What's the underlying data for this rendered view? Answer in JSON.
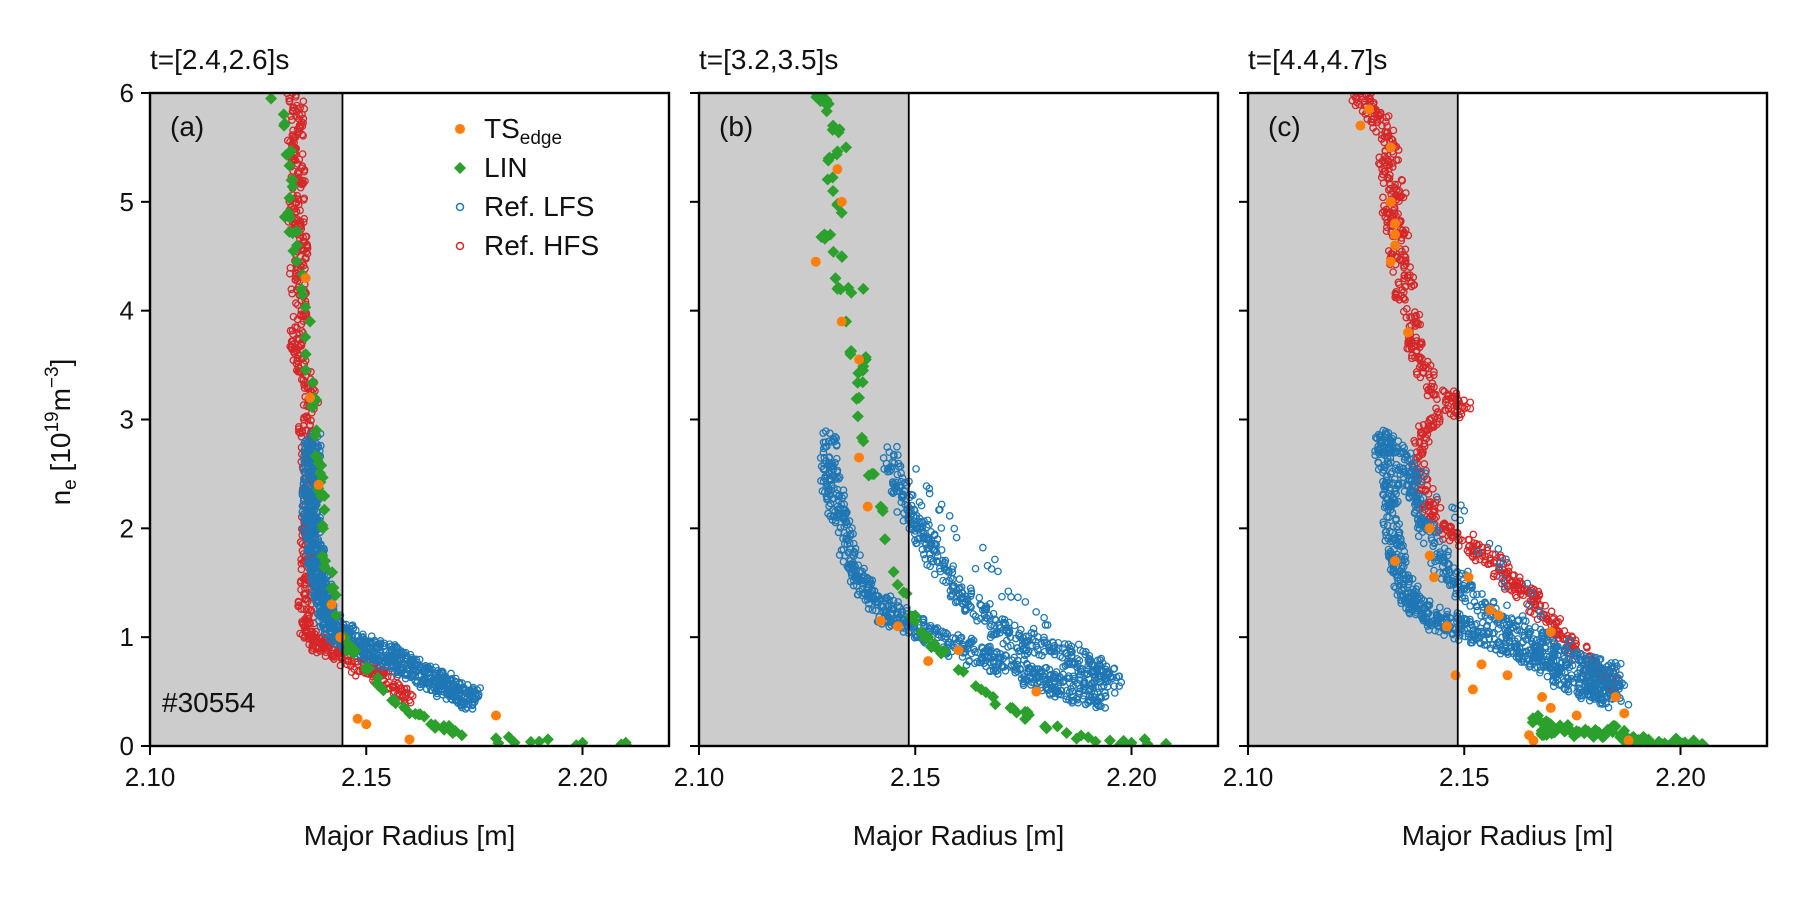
{
  "chart_data": {
    "type": "scatter",
    "ylabel_main": "n",
    "ylabel_sub": "e",
    "ylabel_rest": " [10",
    "ylabel_exp": "19",
    "ylabel_unit": "m",
    "ylabel_unit_exp": "−3",
    "ylabel_close": "]",
    "xlabel": "Major Radius [m]",
    "xlim": [
      2.1,
      2.22
    ],
    "ylim": [
      0,
      6
    ],
    "xticks": [
      "2.10",
      "2.15",
      "2.20"
    ],
    "yticks": [
      "0",
      "1",
      "2",
      "3",
      "4",
      "5",
      "6"
    ],
    "shot_label": "#30554",
    "colors": {
      "ts_edge": "#ff7f0e",
      "lin": "#2ca02c",
      "ref_lfs": "#1f77b4",
      "ref_hfs": "#d62728",
      "shade": "#cccccc"
    },
    "legend": {
      "placement": "top-center of panel (a)",
      "entries": [
        {
          "key": "ts",
          "label": "TS",
          "sub": "edge"
        },
        {
          "key": "lin",
          "label": "LIN",
          "sub": ""
        },
        {
          "key": "lfs",
          "label": "Ref. LFS",
          "sub": ""
        },
        {
          "key": "hfs",
          "label": "Ref. HFS",
          "sub": ""
        }
      ]
    },
    "panels": [
      {
        "title": "t=[2.4,2.6]s",
        "label": "(a)",
        "separatrix_R": 2.1445,
        "hfs": [
          [
            2.133,
            6.0
          ],
          [
            2.1345,
            5.8
          ],
          [
            2.1335,
            5.5
          ],
          [
            2.1345,
            5.2
          ],
          [
            2.1335,
            4.9
          ],
          [
            2.135,
            4.6
          ],
          [
            2.134,
            4.3
          ],
          [
            2.135,
            4.0
          ],
          [
            2.1335,
            3.7
          ],
          [
            2.136,
            3.4
          ],
          [
            2.1375,
            3.2
          ],
          [
            2.136,
            2.9
          ],
          [
            2.1365,
            2.6
          ],
          [
            2.137,
            2.3
          ],
          [
            2.1365,
            2.0
          ],
          [
            2.1365,
            1.7
          ],
          [
            2.136,
            1.4
          ],
          [
            2.136,
            1.15
          ],
          [
            2.137,
            1.0
          ],
          [
            2.14,
            0.9
          ],
          [
            2.144,
            0.85
          ],
          [
            2.148,
            0.75
          ],
          [
            2.152,
            0.65
          ],
          [
            2.156,
            0.55
          ],
          [
            2.16,
            0.42
          ]
        ],
        "lfs": [
          [
            2.1375,
            2.8
          ],
          [
            2.1375,
            2.55
          ],
          [
            2.137,
            2.3
          ],
          [
            2.1375,
            2.0
          ],
          [
            2.138,
            1.8
          ],
          [
            2.139,
            1.6
          ],
          [
            2.14,
            1.4
          ],
          [
            2.141,
            1.2
          ],
          [
            2.143,
            1.05
          ],
          [
            2.146,
            0.98
          ],
          [
            2.15,
            0.9
          ],
          [
            2.155,
            0.82
          ],
          [
            2.16,
            0.72
          ],
          [
            2.165,
            0.62
          ],
          [
            2.17,
            0.52
          ],
          [
            2.175,
            0.43
          ]
        ],
        "lin": [
          [
            2.128,
            5.95
          ],
          [
            2.131,
            5.7
          ],
          [
            2.133,
            5.2
          ],
          [
            2.132,
            4.9
          ],
          [
            2.134,
            4.6
          ],
          [
            2.135,
            4.2
          ],
          [
            2.137,
            3.9
          ],
          [
            2.136,
            3.6
          ],
          [
            2.138,
            3.2
          ],
          [
            2.1385,
            2.9
          ],
          [
            2.139,
            2.6
          ],
          [
            2.1395,
            2.3
          ],
          [
            2.14,
            2.0
          ],
          [
            2.1405,
            1.7
          ],
          [
            2.142,
            1.45
          ],
          [
            2.143,
            1.2
          ],
          [
            2.145,
            1.0
          ],
          [
            2.147,
            0.85
          ],
          [
            2.15,
            0.7
          ],
          [
            2.153,
            0.55
          ],
          [
            2.156,
            0.42
          ],
          [
            2.16,
            0.3
          ],
          [
            2.165,
            0.2
          ],
          [
            2.17,
            0.12
          ],
          [
            2.18,
            0.07
          ],
          [
            2.19,
            0.04
          ],
          [
            2.2,
            0.03
          ],
          [
            2.21,
            0.03
          ]
        ],
        "ts": [
          [
            2.136,
            4.3
          ],
          [
            2.137,
            3.2
          ],
          [
            2.139,
            2.4
          ],
          [
            2.142,
            1.3
          ],
          [
            2.144,
            1.0
          ],
          [
            2.148,
            0.25
          ],
          [
            2.15,
            0.2
          ],
          [
            2.16,
            0.06
          ],
          [
            2.18,
            0.28
          ]
        ]
      },
      {
        "title": "t=[3.2,3.5]s",
        "label": "(b)",
        "separatrix_R": 2.1485,
        "hfs": [],
        "lfs": [
          [
            2.13,
            2.8
          ],
          [
            2.13,
            2.5
          ],
          [
            2.132,
            2.2
          ],
          [
            2.134,
            1.9
          ],
          [
            2.136,
            1.6
          ],
          [
            2.139,
            1.4
          ],
          [
            2.143,
            1.25
          ],
          [
            2.148,
            1.15
          ],
          [
            2.153,
            1.05
          ],
          [
            2.158,
            0.95
          ],
          [
            2.163,
            0.85
          ],
          [
            2.168,
            0.78
          ],
          [
            2.173,
            0.7
          ],
          [
            2.178,
            0.62
          ],
          [
            2.183,
            0.55
          ],
          [
            2.188,
            0.5
          ],
          [
            2.193,
            0.44
          ],
          [
            2.144,
            2.7
          ],
          [
            2.147,
            2.3
          ],
          [
            2.151,
            2.0
          ],
          [
            2.155,
            1.7
          ],
          [
            2.16,
            1.4
          ],
          [
            2.166,
            1.2
          ],
          [
            2.172,
            1.0
          ],
          [
            2.178,
            0.92
          ],
          [
            2.185,
            0.85
          ],
          [
            2.192,
            0.72
          ],
          [
            2.196,
            0.55
          ]
        ],
        "lin": [
          [
            2.127,
            6.0
          ],
          [
            2.13,
            5.9
          ],
          [
            2.131,
            5.7
          ],
          [
            2.134,
            5.5
          ],
          [
            2.13,
            5.4
          ],
          [
            2.131,
            5.1
          ],
          [
            2.133,
            4.9
          ],
          [
            2.129,
            4.7
          ],
          [
            2.133,
            4.5
          ],
          [
            2.132,
            4.2
          ],
          [
            2.138,
            4.2
          ],
          [
            2.134,
            3.9
          ],
          [
            2.135,
            3.6
          ],
          [
            2.138,
            3.55
          ],
          [
            2.137,
            3.2
          ],
          [
            2.138,
            2.8
          ],
          [
            2.14,
            2.5
          ],
          [
            2.142,
            2.2
          ],
          [
            2.143,
            1.9
          ],
          [
            2.145,
            1.6
          ],
          [
            2.148,
            1.4
          ],
          [
            2.15,
            1.2
          ],
          [
            2.153,
            1.0
          ],
          [
            2.156,
            0.85
          ],
          [
            2.16,
            0.7
          ],
          [
            2.164,
            0.55
          ],
          [
            2.168,
            0.45
          ],
          [
            2.172,
            0.35
          ],
          [
            2.176,
            0.28
          ],
          [
            2.18,
            0.18
          ],
          [
            2.185,
            0.12
          ],
          [
            2.19,
            0.08
          ],
          [
            2.195,
            0.05
          ],
          [
            2.2,
            0.03
          ],
          [
            2.208,
            0.02
          ]
        ],
        "ts": [
          [
            2.132,
            5.3
          ],
          [
            2.133,
            5.0
          ],
          [
            2.127,
            4.45
          ],
          [
            2.133,
            3.9
          ],
          [
            2.137,
            3.55
          ],
          [
            2.137,
            2.65
          ],
          [
            2.139,
            2.2
          ],
          [
            2.142,
            1.15
          ],
          [
            2.146,
            1.1
          ],
          [
            2.153,
            0.78
          ],
          [
            2.16,
            0.88
          ],
          [
            2.178,
            0.5
          ]
        ]
      },
      {
        "title": "t=[4.4,4.7]s",
        "label": "(c)",
        "separatrix_R": 2.1485,
        "hfs": [
          [
            2.125,
            6.0
          ],
          [
            2.129,
            5.85
          ],
          [
            2.131,
            5.7
          ],
          [
            2.134,
            5.5
          ],
          [
            2.131,
            5.3
          ],
          [
            2.135,
            5.1
          ],
          [
            2.132,
            4.9
          ],
          [
            2.136,
            4.7
          ],
          [
            2.134,
            4.5
          ],
          [
            2.137,
            4.3
          ],
          [
            2.135,
            4.1
          ],
          [
            2.139,
            3.9
          ],
          [
            2.138,
            3.7
          ],
          [
            2.14,
            3.5
          ],
          [
            2.143,
            3.3
          ],
          [
            2.147,
            3.2
          ],
          [
            2.15,
            3.1
          ],
          [
            2.142,
            3.0
          ],
          [
            2.139,
            2.7
          ],
          [
            2.14,
            2.4
          ],
          [
            2.142,
            2.2
          ],
          [
            2.145,
            2.0
          ],
          [
            2.149,
            1.9
          ],
          [
            2.153,
            1.8
          ],
          [
            2.157,
            1.7
          ],
          [
            2.16,
            1.55
          ],
          [
            2.163,
            1.45
          ],
          [
            2.166,
            1.35
          ],
          [
            2.169,
            1.2
          ],
          [
            2.172,
            1.05
          ],
          [
            2.175,
            0.9
          ],
          [
            2.179,
            0.75
          ],
          [
            2.183,
            0.62
          ],
          [
            2.186,
            0.55
          ]
        ],
        "lfs": [
          [
            2.133,
            2.8
          ],
          [
            2.131,
            2.78
          ],
          [
            2.133,
            2.5
          ],
          [
            2.133,
            2.2
          ],
          [
            2.134,
            1.9
          ],
          [
            2.135,
            1.6
          ],
          [
            2.137,
            1.4
          ],
          [
            2.14,
            1.25
          ],
          [
            2.144,
            1.15
          ],
          [
            2.149,
            1.1
          ],
          [
            2.153,
            1.05
          ],
          [
            2.157,
            0.98
          ],
          [
            2.162,
            0.9
          ],
          [
            2.166,
            0.82
          ],
          [
            2.17,
            0.72
          ],
          [
            2.174,
            0.62
          ],
          [
            2.178,
            0.55
          ],
          [
            2.182,
            0.5
          ],
          [
            2.186,
            0.44
          ],
          [
            2.136,
            2.7
          ],
          [
            2.138,
            2.3
          ],
          [
            2.141,
            2.0
          ],
          [
            2.145,
            1.65
          ],
          [
            2.15,
            1.45
          ],
          [
            2.156,
            1.25
          ],
          [
            2.162,
            1.1
          ],
          [
            2.168,
            0.95
          ],
          [
            2.174,
            0.8
          ],
          [
            2.18,
            0.7
          ],
          [
            2.186,
            0.65
          ]
        ],
        "lin": [
          [
            2.166,
            0.25
          ],
          [
            2.17,
            0.2
          ],
          [
            2.168,
            0.1
          ],
          [
            2.172,
            0.18
          ],
          [
            2.175,
            0.12
          ],
          [
            2.178,
            0.15
          ],
          [
            2.18,
            0.1
          ],
          [
            2.182,
            0.08
          ],
          [
            2.185,
            0.18
          ],
          [
            2.187,
            0.07
          ],
          [
            2.19,
            0.05
          ],
          [
            2.195,
            0.04
          ],
          [
            2.2,
            0.03
          ],
          [
            2.205,
            0.02
          ]
        ],
        "ts": [
          [
            2.126,
            5.7
          ],
          [
            2.128,
            5.85
          ],
          [
            2.133,
            5.5
          ],
          [
            2.133,
            5.0
          ],
          [
            2.134,
            4.8
          ],
          [
            2.134,
            4.7
          ],
          [
            2.134,
            4.6
          ],
          [
            2.133,
            4.45
          ],
          [
            2.137,
            3.8
          ],
          [
            2.134,
            1.7
          ],
          [
            2.142,
            2.0
          ],
          [
            2.142,
            1.75
          ],
          [
            2.143,
            1.55
          ],
          [
            2.146,
            1.1
          ],
          [
            2.148,
            0.65
          ],
          [
            2.151,
            1.55
          ],
          [
            2.156,
            1.25
          ],
          [
            2.158,
            1.2
          ],
          [
            2.152,
            0.52
          ],
          [
            2.154,
            0.75
          ],
          [
            2.16,
            0.65
          ],
          [
            2.165,
            0.1
          ],
          [
            2.166,
            0.05
          ],
          [
            2.17,
            1.05
          ],
          [
            2.168,
            0.45
          ],
          [
            2.17,
            0.35
          ],
          [
            2.176,
            0.28
          ],
          [
            2.185,
            0.45
          ],
          [
            2.187,
            0.3
          ],
          [
            2.188,
            0.05
          ]
        ]
      }
    ]
  }
}
